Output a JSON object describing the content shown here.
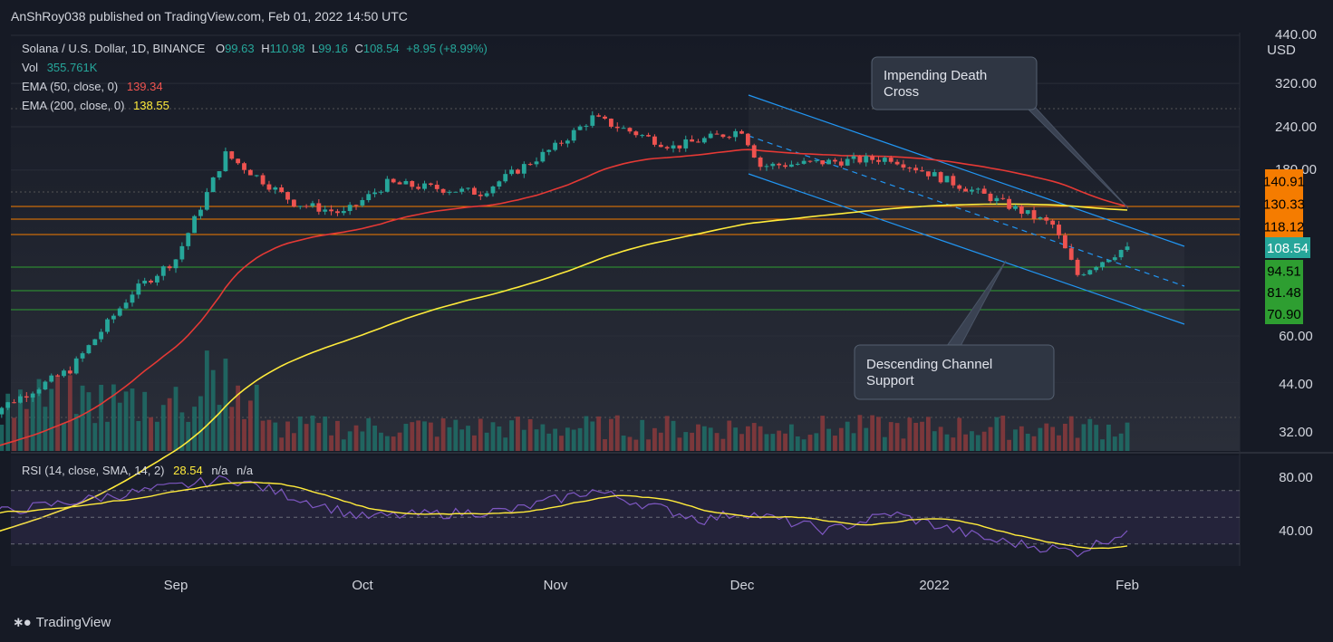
{
  "header": {
    "published": "AnShRoy038 published on TradingView.com, Feb 01, 2022 14:50 UTC"
  },
  "legend": {
    "symbol": "Solana / U.S. Dollar, 1D, BINANCE",
    "o_label": "O",
    "o": "99.63",
    "h_label": "H",
    "h": "110.98",
    "l_label": "L",
    "l": "99.16",
    "c_label": "C",
    "c": "108.54",
    "change": "+8.95 (+8.99%)",
    "vol_label": "Vol",
    "vol": "355.761K",
    "ema50_label": "EMA (50, close, 0)",
    "ema50": "139.34",
    "ema200_label": "EMA (200, close, 0)",
    "ema200": "138.55"
  },
  "rsi_legend": {
    "label": "RSI (14, close, SMA, 14, 2)",
    "value": "28.54",
    "na1": "n/a",
    "na2": "n/a"
  },
  "brand": {
    "name": "TradingView"
  },
  "chart_data": {
    "type": "candlestick",
    "price_axis": {
      "currency": "USD",
      "ticks": [
        "440.00",
        "320.00",
        "240.00",
        "180.00",
        "60.00",
        "44.00",
        "32.00"
      ],
      "scale": "log"
    },
    "x_ticks": [
      "Sep",
      "Oct",
      "Nov",
      "Dec",
      "2022",
      "Feb"
    ],
    "last_price": "108.54",
    "levels": [
      {
        "value": 140.91,
        "label": "140.91",
        "color": "#f57c00"
      },
      {
        "value": 130.33,
        "label": "130.33",
        "color": "#f57c00"
      },
      {
        "value": 118.12,
        "label": "118.12",
        "color": "#f57c00"
      },
      {
        "value": 94.51,
        "label": "94.51",
        "color": "#2e9e31"
      },
      {
        "value": 81.48,
        "label": "81.48",
        "color": "#2e9e31"
      },
      {
        "value": 70.9,
        "label": "70.90",
        "color": "#2e9e31"
      }
    ],
    "key_prices": [
      {
        "x": "Aug 01",
        "y": 35
      },
      {
        "x": "Aug 15",
        "y": 48
      },
      {
        "x": "Aug 25",
        "y": 80
      },
      {
        "x": "Sep 01",
        "y": 100
      },
      {
        "x": "Sep 09",
        "y": 200
      },
      {
        "x": "Sep 20",
        "y": 145
      },
      {
        "x": "Sep 28",
        "y": 135
      },
      {
        "x": "Oct 05",
        "y": 165
      },
      {
        "x": "Oct 20",
        "y": 155
      },
      {
        "x": "Nov 01",
        "y": 210
      },
      {
        "x": "Nov 07",
        "y": 255
      },
      {
        "x": "Nov 20",
        "y": 210
      },
      {
        "x": "Dec 01",
        "y": 235
      },
      {
        "x": "Dec 04",
        "y": 185
      },
      {
        "x": "Dec 25",
        "y": 195
      },
      {
        "x": "Jan 10",
        "y": 150
      },
      {
        "x": "Jan 20",
        "y": 125
      },
      {
        "x": "Jan 24",
        "y": 90
      },
      {
        "x": "Feb 01",
        "y": 108.54
      }
    ],
    "ema50": {
      "last": 139.34,
      "color": "#e53935"
    },
    "ema200": {
      "last": 138.55,
      "color": "#ffeb3b"
    },
    "annotations": [
      "Impending Death Cross",
      "Descending Channel Support"
    ],
    "rsi": {
      "ticks": [
        "80.00",
        "40.00"
      ],
      "bands": [
        70,
        50,
        30
      ],
      "key_values": [
        {
          "x": "Aug 01",
          "y": 52
        },
        {
          "x": "Sep 01",
          "y": 73
        },
        {
          "x": "Sep 10",
          "y": 79
        },
        {
          "x": "Oct 01",
          "y": 50
        },
        {
          "x": "Oct 25",
          "y": 55
        },
        {
          "x": "Nov 07",
          "y": 70
        },
        {
          "x": "Nov 25",
          "y": 48
        },
        {
          "x": "Dec 01",
          "y": 54
        },
        {
          "x": "Dec 15",
          "y": 40
        },
        {
          "x": "Dec 25",
          "y": 53
        },
        {
          "x": "Jan 10",
          "y": 33
        },
        {
          "x": "Jan 24",
          "y": 24
        },
        {
          "x": "Feb 01",
          "y": 40
        }
      ],
      "sma_last": 28.54,
      "line_color": "#7e57c2",
      "sma_color": "#ffeb3b"
    }
  }
}
